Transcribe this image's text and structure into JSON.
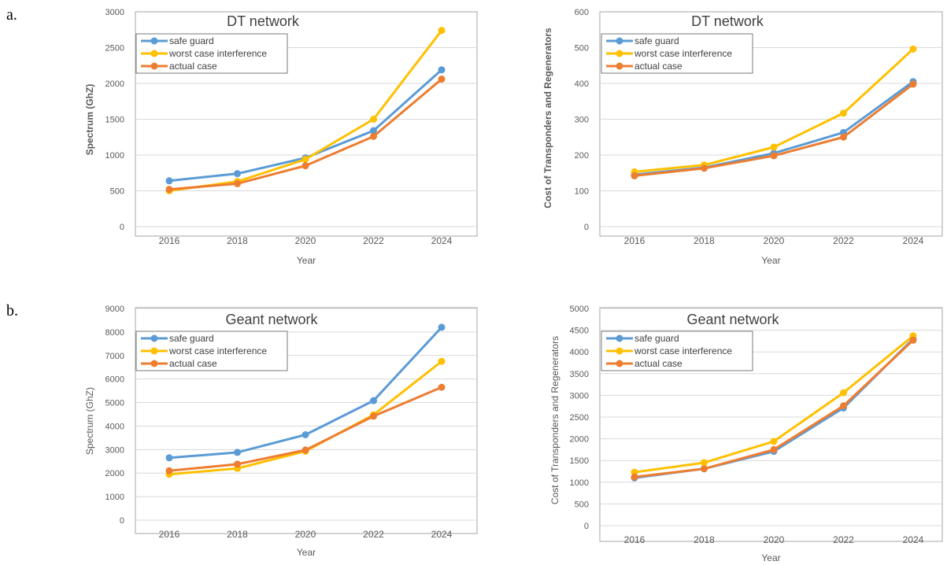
{
  "panel_labels": [
    "a.",
    "b."
  ],
  "colors": {
    "safe_guard": "#5b9bd5",
    "worst_case": "#ffc000",
    "actual": "#ed7d31"
  },
  "chart_data": [
    {
      "type": "line",
      "title": "DT network",
      "xlabel": "Year",
      "ylabel": "Spectrum (GhZ)",
      "ylabel_bold": true,
      "categories": [
        "2016",
        "2018",
        "2020",
        "2022",
        "2024"
      ],
      "ylim": [
        0,
        3000
      ],
      "yticks": [
        0,
        500,
        1000,
        1500,
        2000,
        2500,
        3000
      ],
      "grid": true,
      "legend": "top-left",
      "series": [
        {
          "name": "safe guard",
          "values": [
            640,
            740,
            960,
            1340,
            2190
          ]
        },
        {
          "name": "worst case interference",
          "values": [
            500,
            630,
            940,
            1500,
            2740
          ]
        },
        {
          "name": "actual case",
          "values": [
            520,
            600,
            850,
            1260,
            2060
          ]
        }
      ]
    },
    {
      "type": "line",
      "title": "DT network",
      "xlabel": "Year",
      "ylabel": "Cost of Transponders and Regenerators",
      "ylabel_bold": true,
      "categories": [
        "2016",
        "2018",
        "2020",
        "2022",
        "2024"
      ],
      "ylim": [
        0,
        600
      ],
      "yticks": [
        0,
        100,
        200,
        300,
        400,
        500,
        600
      ],
      "grid": true,
      "legend": "top-left",
      "series": [
        {
          "name": "safe guard",
          "values": [
            145,
            165,
            205,
            263,
            405
          ]
        },
        {
          "name": "worst case interference",
          "values": [
            153,
            172,
            222,
            317,
            496
          ]
        },
        {
          "name": "actual case",
          "values": [
            142,
            163,
            198,
            250,
            398
          ]
        }
      ]
    },
    {
      "type": "line",
      "title": "Geant network",
      "xlabel": "Year",
      "ylabel": "Spectrum (GhZ)",
      "ylabel_bold": false,
      "categories": [
        "2016",
        "2018",
        "2020",
        "2022",
        "2024"
      ],
      "ylim": [
        0,
        9000
      ],
      "yticks": [
        0,
        1000,
        2000,
        3000,
        4000,
        5000,
        6000,
        7000,
        8000,
        9000
      ],
      "grid": true,
      "legend": "top-left",
      "series": [
        {
          "name": "safe guard",
          "values": [
            2650,
            2880,
            3630,
            5080,
            8200
          ]
        },
        {
          "name": "worst case interference",
          "values": [
            1950,
            2200,
            2930,
            4480,
            6750
          ]
        },
        {
          "name": "actual case",
          "values": [
            2100,
            2380,
            2980,
            4420,
            5650
          ]
        }
      ]
    },
    {
      "type": "line",
      "title": "Geant network",
      "xlabel": "Year",
      "ylabel": "Cost of Transponders and Regenerators",
      "ylabel_bold": false,
      "categories": [
        "2016",
        "2018",
        "2020",
        "2022",
        "2024"
      ],
      "ylim": [
        0,
        5000
      ],
      "yticks": [
        0,
        500,
        1000,
        1500,
        2000,
        2500,
        3000,
        3500,
        4000,
        4500,
        5000
      ],
      "grid": true,
      "legend": "top-left",
      "series": [
        {
          "name": "safe guard",
          "values": [
            1100,
            1310,
            1710,
            2710,
            4300
          ]
        },
        {
          "name": "worst case interference",
          "values": [
            1230,
            1450,
            1940,
            3060,
            4370
          ]
        },
        {
          "name": "actual case",
          "values": [
            1120,
            1310,
            1750,
            2760,
            4270
          ]
        }
      ]
    }
  ]
}
